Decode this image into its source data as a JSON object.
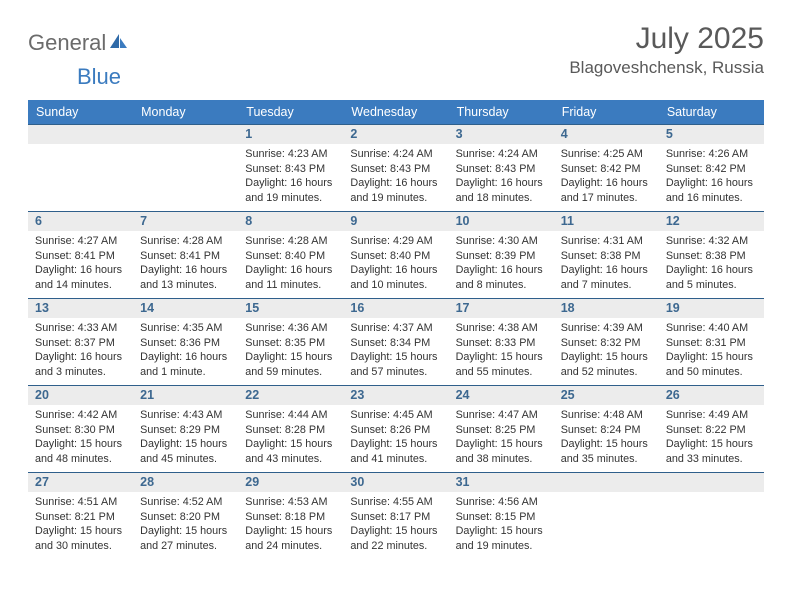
{
  "brand": {
    "text_gray": "General",
    "text_blue": "Blue"
  },
  "title": {
    "month": "July 2025",
    "location": "Blagoveshchensk, Russia"
  },
  "colors": {
    "header_bg": "#3b7bbf",
    "daynum_bg": "#ececec",
    "daynum_fg": "#3d6890",
    "rule": "#2f5f8b",
    "body_text": "#333333",
    "title_text": "#595959",
    "logo_gray": "#6b6b6b"
  },
  "dow": [
    "Sunday",
    "Monday",
    "Tuesday",
    "Wednesday",
    "Thursday",
    "Friday",
    "Saturday"
  ],
  "weeks": [
    [
      null,
      null,
      {
        "n": "1",
        "sr": "Sunrise: 4:23 AM",
        "ss": "Sunset: 8:43 PM",
        "dl": "Daylight: 16 hours and 19 minutes."
      },
      {
        "n": "2",
        "sr": "Sunrise: 4:24 AM",
        "ss": "Sunset: 8:43 PM",
        "dl": "Daylight: 16 hours and 19 minutes."
      },
      {
        "n": "3",
        "sr": "Sunrise: 4:24 AM",
        "ss": "Sunset: 8:43 PM",
        "dl": "Daylight: 16 hours and 18 minutes."
      },
      {
        "n": "4",
        "sr": "Sunrise: 4:25 AM",
        "ss": "Sunset: 8:42 PM",
        "dl": "Daylight: 16 hours and 17 minutes."
      },
      {
        "n": "5",
        "sr": "Sunrise: 4:26 AM",
        "ss": "Sunset: 8:42 PM",
        "dl": "Daylight: 16 hours and 16 minutes."
      }
    ],
    [
      {
        "n": "6",
        "sr": "Sunrise: 4:27 AM",
        "ss": "Sunset: 8:41 PM",
        "dl": "Daylight: 16 hours and 14 minutes."
      },
      {
        "n": "7",
        "sr": "Sunrise: 4:28 AM",
        "ss": "Sunset: 8:41 PM",
        "dl": "Daylight: 16 hours and 13 minutes."
      },
      {
        "n": "8",
        "sr": "Sunrise: 4:28 AM",
        "ss": "Sunset: 8:40 PM",
        "dl": "Daylight: 16 hours and 11 minutes."
      },
      {
        "n": "9",
        "sr": "Sunrise: 4:29 AM",
        "ss": "Sunset: 8:40 PM",
        "dl": "Daylight: 16 hours and 10 minutes."
      },
      {
        "n": "10",
        "sr": "Sunrise: 4:30 AM",
        "ss": "Sunset: 8:39 PM",
        "dl": "Daylight: 16 hours and 8 minutes."
      },
      {
        "n": "11",
        "sr": "Sunrise: 4:31 AM",
        "ss": "Sunset: 8:38 PM",
        "dl": "Daylight: 16 hours and 7 minutes."
      },
      {
        "n": "12",
        "sr": "Sunrise: 4:32 AM",
        "ss": "Sunset: 8:38 PM",
        "dl": "Daylight: 16 hours and 5 minutes."
      }
    ],
    [
      {
        "n": "13",
        "sr": "Sunrise: 4:33 AM",
        "ss": "Sunset: 8:37 PM",
        "dl": "Daylight: 16 hours and 3 minutes."
      },
      {
        "n": "14",
        "sr": "Sunrise: 4:35 AM",
        "ss": "Sunset: 8:36 PM",
        "dl": "Daylight: 16 hours and 1 minute."
      },
      {
        "n": "15",
        "sr": "Sunrise: 4:36 AM",
        "ss": "Sunset: 8:35 PM",
        "dl": "Daylight: 15 hours and 59 minutes."
      },
      {
        "n": "16",
        "sr": "Sunrise: 4:37 AM",
        "ss": "Sunset: 8:34 PM",
        "dl": "Daylight: 15 hours and 57 minutes."
      },
      {
        "n": "17",
        "sr": "Sunrise: 4:38 AM",
        "ss": "Sunset: 8:33 PM",
        "dl": "Daylight: 15 hours and 55 minutes."
      },
      {
        "n": "18",
        "sr": "Sunrise: 4:39 AM",
        "ss": "Sunset: 8:32 PM",
        "dl": "Daylight: 15 hours and 52 minutes."
      },
      {
        "n": "19",
        "sr": "Sunrise: 4:40 AM",
        "ss": "Sunset: 8:31 PM",
        "dl": "Daylight: 15 hours and 50 minutes."
      }
    ],
    [
      {
        "n": "20",
        "sr": "Sunrise: 4:42 AM",
        "ss": "Sunset: 8:30 PM",
        "dl": "Daylight: 15 hours and 48 minutes."
      },
      {
        "n": "21",
        "sr": "Sunrise: 4:43 AM",
        "ss": "Sunset: 8:29 PM",
        "dl": "Daylight: 15 hours and 45 minutes."
      },
      {
        "n": "22",
        "sr": "Sunrise: 4:44 AM",
        "ss": "Sunset: 8:28 PM",
        "dl": "Daylight: 15 hours and 43 minutes."
      },
      {
        "n": "23",
        "sr": "Sunrise: 4:45 AM",
        "ss": "Sunset: 8:26 PM",
        "dl": "Daylight: 15 hours and 41 minutes."
      },
      {
        "n": "24",
        "sr": "Sunrise: 4:47 AM",
        "ss": "Sunset: 8:25 PM",
        "dl": "Daylight: 15 hours and 38 minutes."
      },
      {
        "n": "25",
        "sr": "Sunrise: 4:48 AM",
        "ss": "Sunset: 8:24 PM",
        "dl": "Daylight: 15 hours and 35 minutes."
      },
      {
        "n": "26",
        "sr": "Sunrise: 4:49 AM",
        "ss": "Sunset: 8:22 PM",
        "dl": "Daylight: 15 hours and 33 minutes."
      }
    ],
    [
      {
        "n": "27",
        "sr": "Sunrise: 4:51 AM",
        "ss": "Sunset: 8:21 PM",
        "dl": "Daylight: 15 hours and 30 minutes."
      },
      {
        "n": "28",
        "sr": "Sunrise: 4:52 AM",
        "ss": "Sunset: 8:20 PM",
        "dl": "Daylight: 15 hours and 27 minutes."
      },
      {
        "n": "29",
        "sr": "Sunrise: 4:53 AM",
        "ss": "Sunset: 8:18 PM",
        "dl": "Daylight: 15 hours and 24 minutes."
      },
      {
        "n": "30",
        "sr": "Sunrise: 4:55 AM",
        "ss": "Sunset: 8:17 PM",
        "dl": "Daylight: 15 hours and 22 minutes."
      },
      {
        "n": "31",
        "sr": "Sunrise: 4:56 AM",
        "ss": "Sunset: 8:15 PM",
        "dl": "Daylight: 15 hours and 19 minutes."
      },
      null,
      null
    ]
  ]
}
